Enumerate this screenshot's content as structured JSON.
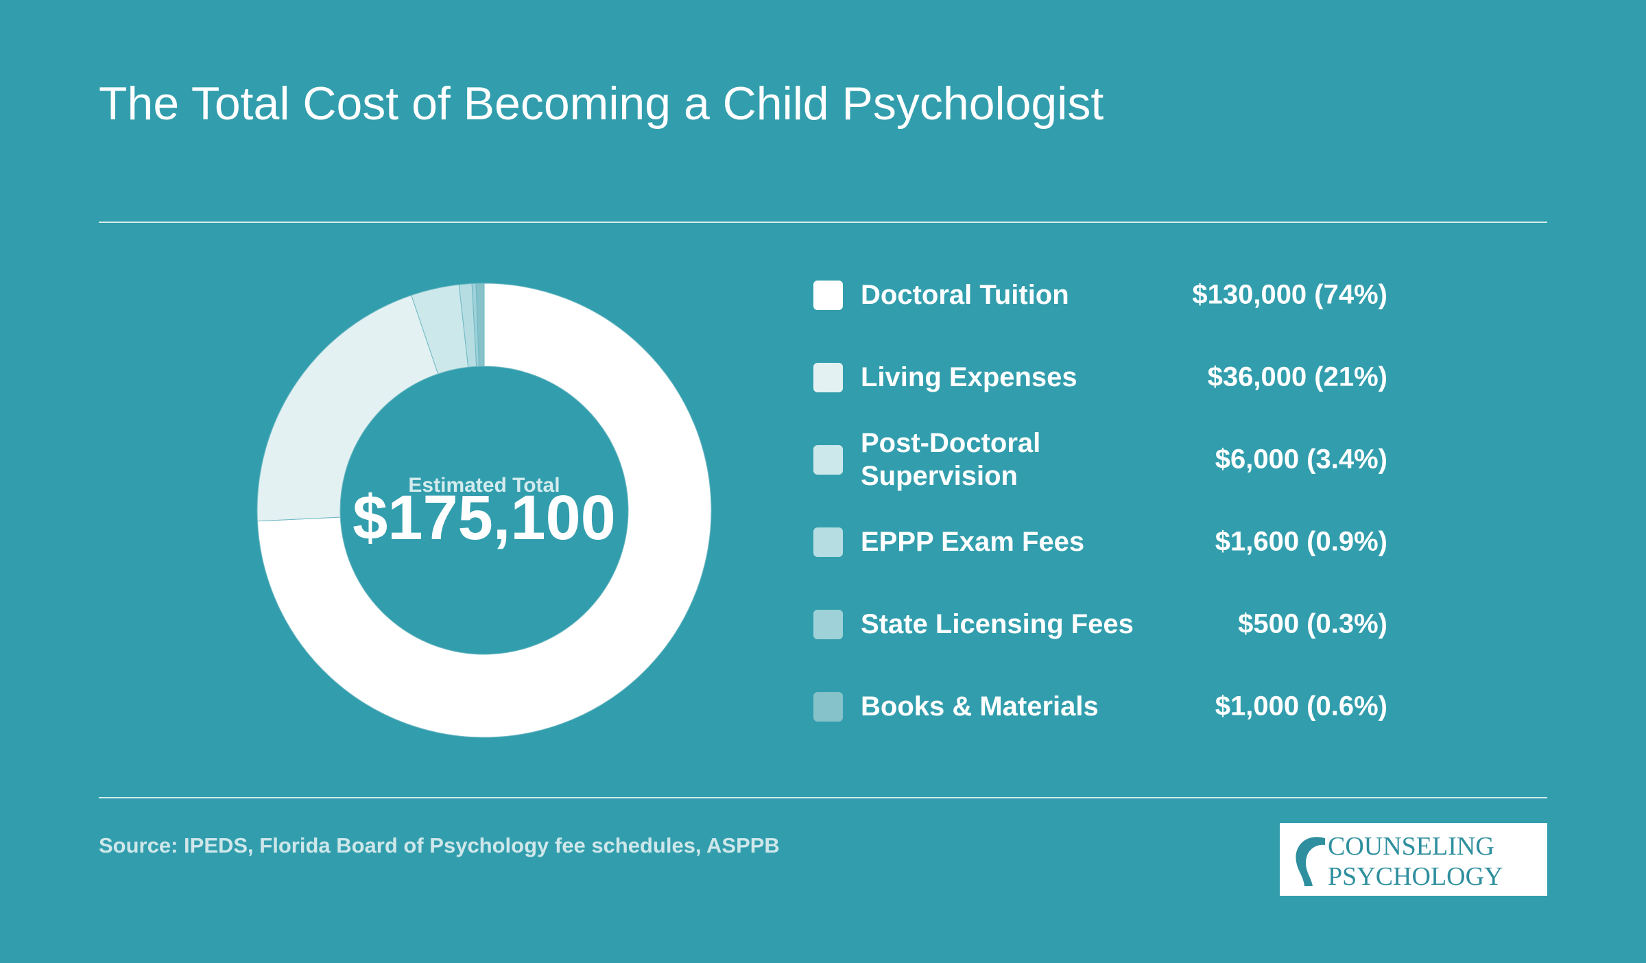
{
  "chart_data": {
    "type": "pie",
    "title": "The Total Cost of Becoming a Child Psychologist",
    "categories": [
      "Doctoral Tuition",
      "Living Expenses",
      "Post-Doctoral Supervision",
      "EPPP Exam Fees",
      "State Licensing Fees",
      "Books & Materials"
    ],
    "values": [
      130000,
      36000,
      6000,
      1600,
      500,
      1000
    ],
    "value_labels": [
      "$130,000 (74%)",
      "$36,000 (21%)",
      "$6,000 (3.4%)",
      "$1,600 (0.9%)",
      "$500 (0.3%)",
      "$1,000 (0.6%)"
    ],
    "colors": [
      "#ffffff",
      "#e3f1f3",
      "#cde8eb",
      "#b6dde2",
      "#9ed1d8",
      "#85c2ca"
    ],
    "center_title": "Estimated Total",
    "center_text": "$175,100",
    "source": "Source: IPEDS, Florida Board of Psychology fee schedules, ASPPB"
  },
  "logo": {
    "line1": "COUNSELING",
    "line2": "PSYCHOLOGY"
  }
}
